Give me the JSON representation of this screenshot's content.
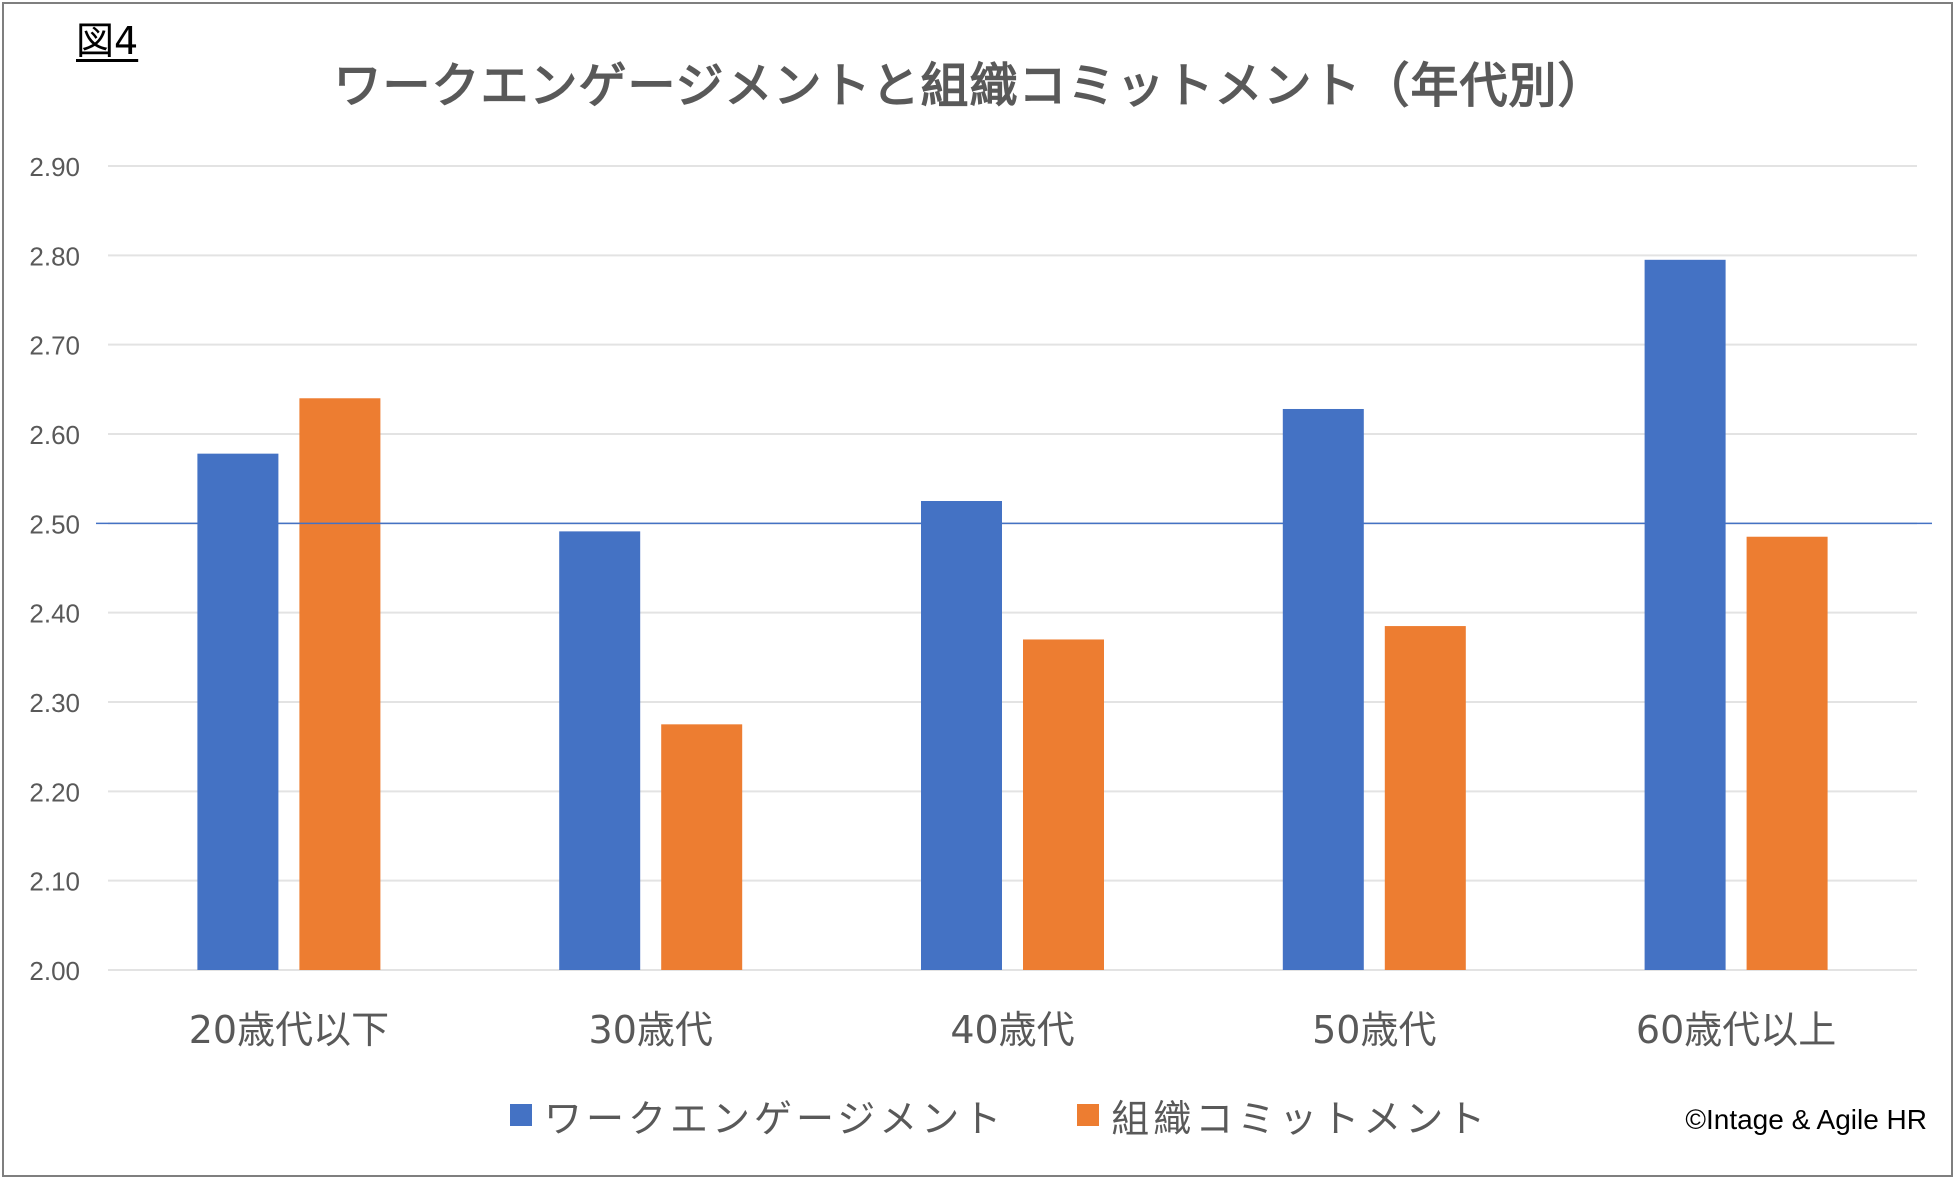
{
  "figure_label": "図4",
  "copyright": "©Intage & Agile HR",
  "colors": {
    "work_engagement": "#4472C4",
    "org_commitment": "#ED7D31",
    "gridline": "#e3e3e3",
    "reference_line": "#4472C4"
  },
  "chart_data": {
    "type": "bar",
    "title": "ワークエンゲージメントと組織コミットメント（年代別）",
    "xlabel": "",
    "ylabel": "",
    "categories": [
      "20歳代以下",
      "30歳代",
      "40歳代",
      "50歳代",
      "60歳代以上"
    ],
    "series": [
      {
        "name": "ワークエンゲージメント",
        "values": [
          2.578,
          2.491,
          2.525,
          2.628,
          2.795
        ]
      },
      {
        "name": "組織コミットメント",
        "values": [
          2.64,
          2.275,
          2.37,
          2.385,
          2.485
        ]
      }
    ],
    "ylim": [
      2.0,
      2.9
    ],
    "yticks": [
      "2.00",
      "2.10",
      "2.20",
      "2.30",
      "2.40",
      "2.50",
      "2.60",
      "2.70",
      "2.80",
      "2.90"
    ],
    "reference_line": 2.5,
    "grid": true,
    "legend_position": "bottom"
  }
}
